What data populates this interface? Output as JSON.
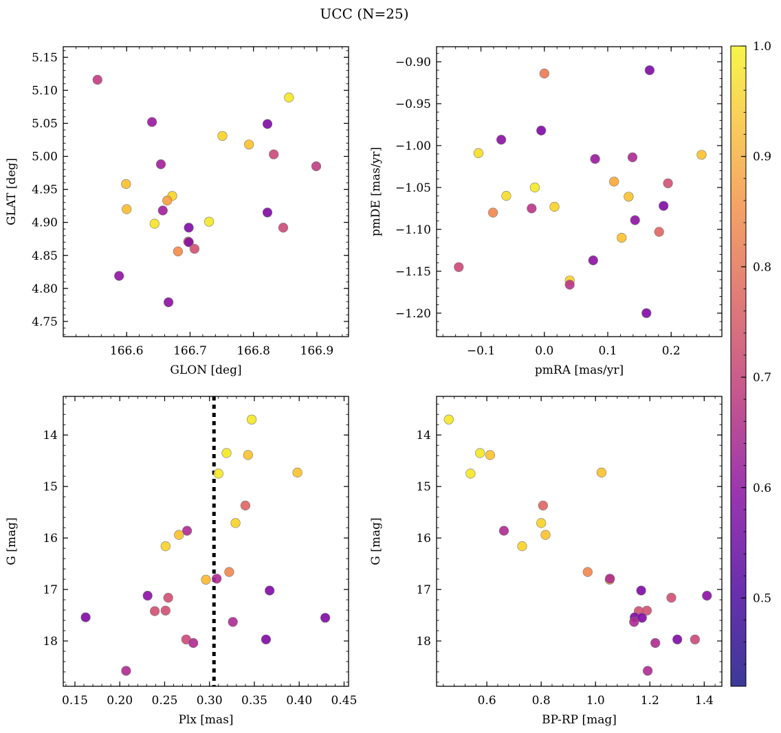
{
  "figure": {
    "title": "UCC (N=25)"
  },
  "colorbar": {
    "vmin": 0.42,
    "vmax": 1.0,
    "ticks": [
      0.5,
      0.6,
      0.7,
      0.8,
      0.9,
      1.0
    ],
    "tick_labels": [
      "0.5",
      "0.6",
      "0.7",
      "0.8",
      "0.9",
      "1.0"
    ],
    "colormap": "plasma"
  },
  "chart_data": [
    {
      "type": "scatter",
      "xlabel": "GLON [deg]",
      "ylabel": "GLAT [deg]",
      "xlim": [
        166.5,
        166.95
      ],
      "ylim": [
        4.727,
        5.166
      ],
      "x_ticks": [
        166.6,
        166.7,
        166.8,
        166.9
      ],
      "x_tick_labels": [
        "166.6",
        "166.7",
        "166.8",
        "166.9"
      ],
      "y_ticks": [
        4.75,
        4.8,
        4.85,
        4.9,
        4.95,
        5.0,
        5.05,
        5.1,
        5.15
      ],
      "y_tick_labels": [
        "4.75",
        "4.80",
        "4.85",
        "4.90",
        "4.95",
        "5.00",
        "5.05",
        "5.10",
        "5.15"
      ],
      "y_inverted": false,
      "points": [
        {
          "x": 166.554,
          "y": 5.116,
          "c": 0.6
        },
        {
          "x": 166.64,
          "y": 5.052,
          "c": 0.5
        },
        {
          "x": 166.856,
          "y": 5.089,
          "c": 0.97
        },
        {
          "x": 166.751,
          "y": 5.031,
          "c": 0.93
        },
        {
          "x": 166.822,
          "y": 5.049,
          "c": 0.45
        },
        {
          "x": 166.793,
          "y": 5.018,
          "c": 0.9
        },
        {
          "x": 166.832,
          "y": 5.003,
          "c": 0.63
        },
        {
          "x": 166.899,
          "y": 4.985,
          "c": 0.6
        },
        {
          "x": 166.654,
          "y": 4.988,
          "c": 0.52
        },
        {
          "x": 166.599,
          "y": 4.958,
          "c": 0.89
        },
        {
          "x": 166.672,
          "y": 4.94,
          "c": 0.93
        },
        {
          "x": 166.664,
          "y": 4.933,
          "c": 0.83
        },
        {
          "x": 166.6,
          "y": 4.92,
          "c": 0.89
        },
        {
          "x": 166.657,
          "y": 4.918,
          "c": 0.52
        },
        {
          "x": 166.644,
          "y": 4.898,
          "c": 0.96
        },
        {
          "x": 166.73,
          "y": 4.901,
          "c": 0.97
        },
        {
          "x": 166.822,
          "y": 4.915,
          "c": 0.45
        },
        {
          "x": 166.847,
          "y": 4.892,
          "c": 0.63
        },
        {
          "x": 166.698,
          "y": 4.892,
          "c": 0.45
        },
        {
          "x": 166.697,
          "y": 4.871,
          "c": 0.78
        },
        {
          "x": 166.698,
          "y": 4.87,
          "c": 0.46
        },
        {
          "x": 166.707,
          "y": 4.86,
          "c": 0.65
        },
        {
          "x": 166.681,
          "y": 4.856,
          "c": 0.79
        },
        {
          "x": 166.588,
          "y": 4.819,
          "c": 0.48
        },
        {
          "x": 166.666,
          "y": 4.779,
          "c": 0.47
        }
      ]
    },
    {
      "type": "scatter",
      "xlabel": "pmRA [mas/yr]",
      "ylabel": "pmDE [mas/yr]",
      "xlim": [
        -0.17,
        0.28
      ],
      "ylim": [
        -1.228,
        -0.882
      ],
      "x_ticks": [
        -0.1,
        0.0,
        0.1,
        0.2
      ],
      "x_tick_labels": [
        "−0.1",
        "0.0",
        "0.1",
        "0.2"
      ],
      "y_ticks": [
        -1.2,
        -1.15,
        -1.1,
        -1.05,
        -1.0,
        -0.95,
        -0.9
      ],
      "y_tick_labels": [
        "−1.20",
        "−1.15",
        "−1.10",
        "−1.05",
        "−1.00",
        "−0.95",
        "−0.90"
      ],
      "y_inverted": false,
      "points": [
        {
          "x": 0.166,
          "y": -0.91,
          "c": 0.45
        },
        {
          "x": 0.0,
          "y": -0.914,
          "c": 0.75
        },
        {
          "x": -0.068,
          "y": -0.993,
          "c": 0.47
        },
        {
          "x": -0.005,
          "y": -0.982,
          "c": 0.45
        },
        {
          "x": -0.104,
          "y": -1.009,
          "c": 0.95
        },
        {
          "x": 0.08,
          "y": -1.016,
          "c": 0.5
        },
        {
          "x": 0.139,
          "y": -1.014,
          "c": 0.55
        },
        {
          "x": 0.248,
          "y": -1.011,
          "c": 0.9
        },
        {
          "x": 0.11,
          "y": -1.043,
          "c": 0.85
        },
        {
          "x": 0.195,
          "y": -1.045,
          "c": 0.65
        },
        {
          "x": -0.015,
          "y": -1.05,
          "c": 0.97
        },
        {
          "x": -0.06,
          "y": -1.06,
          "c": 0.95
        },
        {
          "x": 0.133,
          "y": -1.061,
          "c": 0.9
        },
        {
          "x": -0.02,
          "y": -1.075,
          "c": 0.58
        },
        {
          "x": 0.016,
          "y": -1.073,
          "c": 0.93
        },
        {
          "x": 0.188,
          "y": -1.072,
          "c": 0.45
        },
        {
          "x": -0.081,
          "y": -1.08,
          "c": 0.78
        },
        {
          "x": 0.143,
          "y": -1.089,
          "c": 0.48
        },
        {
          "x": 0.181,
          "y": -1.103,
          "c": 0.7
        },
        {
          "x": 0.122,
          "y": -1.11,
          "c": 0.9
        },
        {
          "x": 0.077,
          "y": -1.137,
          "c": 0.47
        },
        {
          "x": -0.135,
          "y": -1.145,
          "c": 0.63
        },
        {
          "x": 0.04,
          "y": -1.161,
          "c": 0.93
        },
        {
          "x": 0.04,
          "y": -1.166,
          "c": 0.58
        },
        {
          "x": 0.161,
          "y": -1.2,
          "c": 0.45
        }
      ]
    },
    {
      "type": "scatter",
      "xlabel": "Plx [mas]",
      "ylabel": "G [mag]",
      "xlim": [
        0.137,
        0.455
      ],
      "ylim": [
        13.25,
        18.88
      ],
      "x_ticks": [
        0.15,
        0.2,
        0.25,
        0.3,
        0.35,
        0.4,
        0.45
      ],
      "x_tick_labels": [
        "0.15",
        "0.20",
        "0.25",
        "0.30",
        "0.35",
        "0.40",
        "0.45"
      ],
      "y_ticks": [
        14,
        15,
        16,
        17,
        18
      ],
      "y_tick_labels": [
        "14",
        "15",
        "16",
        "17",
        "18"
      ],
      "y_inverted": true,
      "vline": 0.305,
      "points": [
        {
          "x": 0.347,
          "y": 13.7,
          "c": 0.97
        },
        {
          "x": 0.319,
          "y": 14.35,
          "c": 0.97
        },
        {
          "x": 0.343,
          "y": 14.39,
          "c": 0.9
        },
        {
          "x": 0.31,
          "y": 14.75,
          "c": 0.97
        },
        {
          "x": 0.398,
          "y": 14.73,
          "c": 0.9
        },
        {
          "x": 0.34,
          "y": 15.37,
          "c": 0.7
        },
        {
          "x": 0.329,
          "y": 15.71,
          "c": 0.93
        },
        {
          "x": 0.275,
          "y": 15.86,
          "c": 0.55
        },
        {
          "x": 0.266,
          "y": 15.94,
          "c": 0.9
        },
        {
          "x": 0.251,
          "y": 16.16,
          "c": 0.93
        },
        {
          "x": 0.322,
          "y": 16.66,
          "c": 0.78
        },
        {
          "x": 0.296,
          "y": 16.81,
          "c": 0.88
        },
        {
          "x": 0.308,
          "y": 16.79,
          "c": 0.55
        },
        {
          "x": 0.367,
          "y": 17.02,
          "c": 0.45
        },
        {
          "x": 0.231,
          "y": 17.12,
          "c": 0.47
        },
        {
          "x": 0.254,
          "y": 17.16,
          "c": 0.65
        },
        {
          "x": 0.239,
          "y": 17.42,
          "c": 0.65
        },
        {
          "x": 0.251,
          "y": 17.41,
          "c": 0.65
        },
        {
          "x": 0.162,
          "y": 17.54,
          "c": 0.45
        },
        {
          "x": 0.429,
          "y": 17.55,
          "c": 0.45
        },
        {
          "x": 0.326,
          "y": 17.63,
          "c": 0.55
        },
        {
          "x": 0.274,
          "y": 17.97,
          "c": 0.63
        },
        {
          "x": 0.363,
          "y": 17.97,
          "c": 0.45
        },
        {
          "x": 0.282,
          "y": 18.04,
          "c": 0.55
        },
        {
          "x": 0.207,
          "y": 18.58,
          "c": 0.55
        }
      ]
    },
    {
      "type": "scatter",
      "xlabel": "BP-RP [mag]",
      "ylabel": "G [mag]",
      "xlim": [
        0.415,
        1.465
      ],
      "ylim": [
        13.25,
        18.88
      ],
      "x_ticks": [
        0.6,
        0.8,
        1.0,
        1.2,
        1.4
      ],
      "x_tick_labels": [
        "0.6",
        "0.8",
        "1.0",
        "1.2",
        "1.4"
      ],
      "y_ticks": [
        14,
        15,
        16,
        17,
        18
      ],
      "y_tick_labels": [
        "14",
        "15",
        "16",
        "17",
        "18"
      ],
      "y_inverted": true,
      "points": [
        {
          "x": 0.46,
          "y": 13.7,
          "c": 0.97
        },
        {
          "x": 0.575,
          "y": 14.35,
          "c": 0.97
        },
        {
          "x": 0.612,
          "y": 14.39,
          "c": 0.9
        },
        {
          "x": 0.54,
          "y": 14.75,
          "c": 0.97
        },
        {
          "x": 1.022,
          "y": 14.73,
          "c": 0.9
        },
        {
          "x": 0.807,
          "y": 15.37,
          "c": 0.7
        },
        {
          "x": 0.8,
          "y": 15.71,
          "c": 0.93
        },
        {
          "x": 0.663,
          "y": 15.86,
          "c": 0.55
        },
        {
          "x": 0.816,
          "y": 15.94,
          "c": 0.9
        },
        {
          "x": 0.73,
          "y": 16.16,
          "c": 0.93
        },
        {
          "x": 0.971,
          "y": 16.66,
          "c": 0.78
        },
        {
          "x": 1.052,
          "y": 16.81,
          "c": 0.88
        },
        {
          "x": 1.053,
          "y": 16.79,
          "c": 0.55
        },
        {
          "x": 1.168,
          "y": 17.02,
          "c": 0.45
        },
        {
          "x": 1.41,
          "y": 17.12,
          "c": 0.47
        },
        {
          "x": 1.279,
          "y": 17.16,
          "c": 0.65
        },
        {
          "x": 1.159,
          "y": 17.42,
          "c": 0.65
        },
        {
          "x": 1.189,
          "y": 17.41,
          "c": 0.65
        },
        {
          "x": 1.144,
          "y": 17.54,
          "c": 0.45
        },
        {
          "x": 1.171,
          "y": 17.55,
          "c": 0.45
        },
        {
          "x": 1.142,
          "y": 17.63,
          "c": 0.55
        },
        {
          "x": 1.366,
          "y": 17.97,
          "c": 0.63
        },
        {
          "x": 1.301,
          "y": 17.97,
          "c": 0.45
        },
        {
          "x": 1.22,
          "y": 18.04,
          "c": 0.55
        },
        {
          "x": 1.192,
          "y": 18.58,
          "c": 0.55
        }
      ]
    }
  ]
}
